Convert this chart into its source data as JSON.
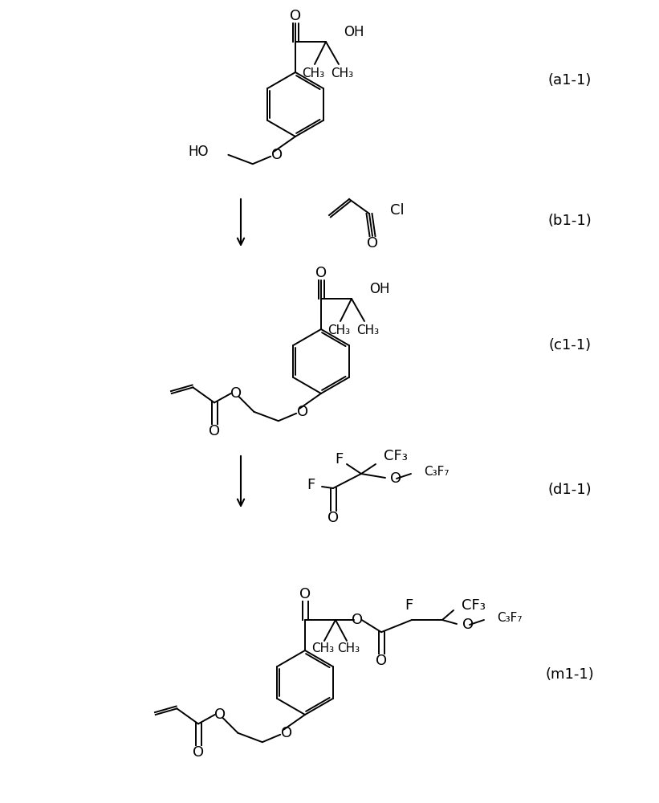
{
  "bg_color": "#ffffff",
  "label_a": "(a1-1)",
  "label_b": "(b1-1)",
  "label_c": "(c1-1)",
  "label_d": "(d1-1)",
  "label_m": "(m1-1)",
  "label_fontsize": 13,
  "struct_fontsize": 12,
  "lw": 1.4,
  "ring_r": 40
}
